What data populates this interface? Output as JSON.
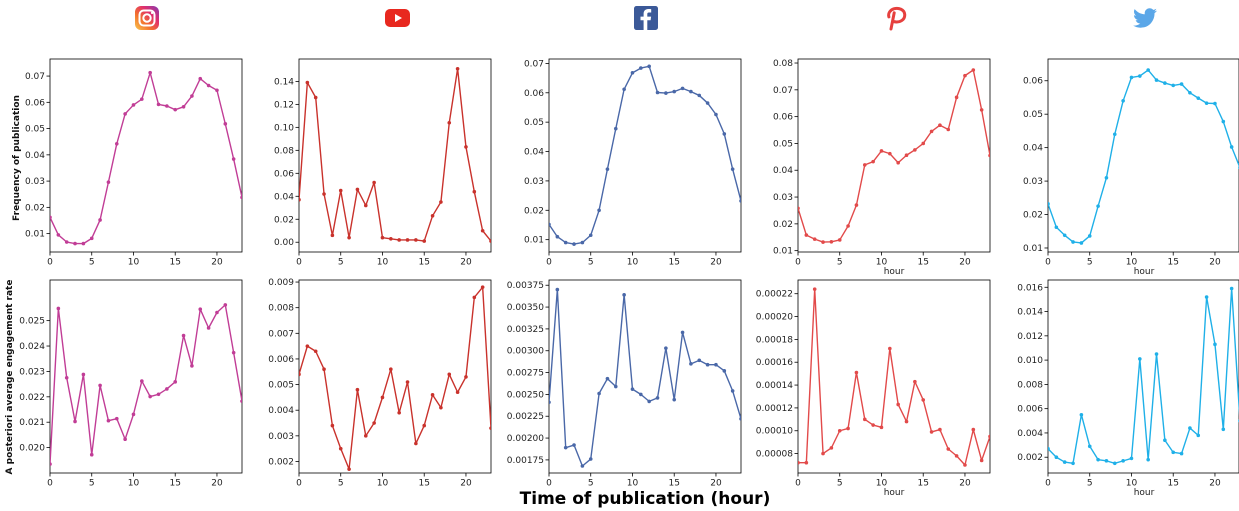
{
  "figure": {
    "xlabel": "Time of publication (hour)",
    "row_ylabels": [
      "Frequency of publication",
      "A posteriori average engagement rate"
    ]
  },
  "platforms": [
    {
      "name": "Instagram",
      "icon": "instagram-icon",
      "color": "#c13d96"
    },
    {
      "name": "YouTube",
      "icon": "youtube-icon",
      "color": "#e8281f"
    },
    {
      "name": "Facebook",
      "icon": "facebook-icon",
      "color": "#3b5998"
    },
    {
      "name": "Pinterest",
      "icon": "pinterest-icon",
      "color": "#e6403e"
    },
    {
      "name": "Twitter",
      "icon": "twitter-icon",
      "color": "#1da1f2"
    }
  ],
  "chart_data": [
    {
      "type": "line",
      "id": "instagram-frequency",
      "color": "#c13d96",
      "xlabel": "",
      "xlim": [
        0,
        23
      ],
      "ylim": [
        0.003,
        0.0765
      ],
      "xticks": [
        0,
        5,
        10,
        15,
        20
      ],
      "xtick_labels": [
        "0",
        "5",
        "10",
        "15",
        "20"
      ],
      "yticks": [
        0.01,
        0.02,
        0.03,
        0.04,
        0.05,
        0.06,
        0.07
      ],
      "ytick_labels": [
        "0.01",
        "0.02",
        "0.03",
        "0.04",
        "0.05",
        "0.06",
        "0.07"
      ],
      "x": [
        0,
        1,
        2,
        3,
        4,
        5,
        6,
        7,
        8,
        9,
        10,
        11,
        12,
        13,
        14,
        15,
        16,
        17,
        18,
        19,
        20,
        21,
        22,
        23
      ],
      "values": [
        0.0162,
        0.0095,
        0.0068,
        0.0062,
        0.0062,
        0.0082,
        0.0152,
        0.0296,
        0.0442,
        0.0556,
        0.059,
        0.0612,
        0.0713,
        0.0592,
        0.0586,
        0.0572,
        0.0583,
        0.0624,
        0.069,
        0.0664,
        0.0646,
        0.0518,
        0.0384,
        0.0238
      ]
    },
    {
      "type": "line",
      "id": "youtube-frequency",
      "color": "#c9322c",
      "xlabel": "",
      "xlim": [
        0,
        23
      ],
      "ylim": [
        -0.0085,
        0.1595
      ],
      "xticks": [
        0,
        5,
        10,
        15,
        20
      ],
      "xtick_labels": [
        "0",
        "5",
        "10",
        "15",
        "20"
      ],
      "yticks": [
        0.0,
        0.02,
        0.04,
        0.06,
        0.08,
        0.1,
        0.12,
        0.14
      ],
      "ytick_labels": [
        "0.00",
        "0.02",
        "0.04",
        "0.06",
        "0.08",
        "0.10",
        "0.12",
        "0.14"
      ],
      "x": [
        0,
        1,
        2,
        3,
        4,
        5,
        6,
        7,
        8,
        9,
        10,
        11,
        12,
        13,
        14,
        15,
        16,
        17,
        18,
        19,
        20,
        21,
        22,
        23
      ],
      "values": [
        0.037,
        0.139,
        0.126,
        0.042,
        0.006,
        0.045,
        0.004,
        0.046,
        0.032,
        0.052,
        0.004,
        0.003,
        0.002,
        0.002,
        0.002,
        0.001,
        0.023,
        0.035,
        0.104,
        0.151,
        0.083,
        0.044,
        0.01,
        0.001
      ]
    },
    {
      "type": "line",
      "id": "facebook-frequency",
      "color": "#4a68a8",
      "xlabel": "",
      "xlim": [
        0,
        23
      ],
      "ylim": [
        0.0058,
        0.0715
      ],
      "xticks": [
        0,
        5,
        10,
        15,
        20
      ],
      "xtick_labels": [
        "0",
        "5",
        "10",
        "15",
        "20"
      ],
      "yticks": [
        0.01,
        0.02,
        0.03,
        0.04,
        0.05,
        0.06,
        0.07
      ],
      "ytick_labels": [
        "0.01",
        "0.02",
        "0.03",
        "0.04",
        "0.05",
        "0.06",
        "0.07"
      ],
      "x": [
        0,
        1,
        2,
        3,
        4,
        5,
        6,
        7,
        8,
        9,
        10,
        11,
        12,
        13,
        14,
        15,
        16,
        17,
        18,
        19,
        20,
        21,
        22,
        23
      ],
      "values": [
        0.0152,
        0.011,
        0.009,
        0.0085,
        0.009,
        0.0115,
        0.02,
        0.034,
        0.0478,
        0.0612,
        0.0668,
        0.0684,
        0.069,
        0.0601,
        0.0599,
        0.0604,
        0.0615,
        0.0604,
        0.0591,
        0.0565,
        0.0526,
        0.046,
        0.034,
        0.0232
      ]
    },
    {
      "type": "line",
      "id": "pinterest-frequency",
      "color": "#e24a4a",
      "xlabel": "hour",
      "xlim": [
        0,
        23
      ],
      "ylim": [
        0.0095,
        0.0815
      ],
      "xticks": [
        0,
        5,
        10,
        15,
        20
      ],
      "xtick_labels": [
        "0",
        "5",
        "10",
        "15",
        "20"
      ],
      "yticks": [
        0.01,
        0.02,
        0.03,
        0.04,
        0.05,
        0.06,
        0.07,
        0.08
      ],
      "ytick_labels": [
        "0.01",
        "0.02",
        "0.03",
        "0.04",
        "0.05",
        "0.06",
        "0.07",
        "0.08"
      ],
      "x": [
        0,
        1,
        2,
        3,
        4,
        5,
        6,
        7,
        8,
        9,
        10,
        11,
        12,
        13,
        14,
        15,
        16,
        17,
        18,
        19,
        20,
        21,
        22,
        23
      ],
      "values": [
        0.0258,
        0.0158,
        0.0143,
        0.0132,
        0.0133,
        0.014,
        0.0192,
        0.027,
        0.042,
        0.0432,
        0.0472,
        0.0462,
        0.0428,
        0.0456,
        0.0476,
        0.05,
        0.0545,
        0.0568,
        0.0552,
        0.0672,
        0.0753,
        0.0774,
        0.0625,
        0.0455
      ]
    },
    {
      "type": "line",
      "id": "twitter-frequency",
      "color": "#1fb0e8",
      "xlabel": "hour",
      "xlim": [
        0,
        23
      ],
      "ylim": [
        0.0088,
        0.0665
      ],
      "xticks": [
        0,
        5,
        10,
        15,
        20
      ],
      "xtick_labels": [
        "0",
        "5",
        "10",
        "15",
        "20"
      ],
      "yticks": [
        0.01,
        0.02,
        0.03,
        0.04,
        0.05,
        0.06
      ],
      "ytick_labels": [
        "0.01",
        "0.02",
        "0.03",
        "0.04",
        "0.05",
        "0.06"
      ],
      "x": [
        0,
        1,
        2,
        3,
        4,
        5,
        6,
        7,
        8,
        9,
        10,
        11,
        12,
        13,
        14,
        15,
        16,
        17,
        18,
        19,
        20,
        21,
        22,
        23
      ],
      "values": [
        0.0232,
        0.0162,
        0.0138,
        0.0118,
        0.0115,
        0.0136,
        0.0225,
        0.031,
        0.044,
        0.054,
        0.061,
        0.0614,
        0.0632,
        0.0602,
        0.0593,
        0.0586,
        0.059,
        0.0564,
        0.0548,
        0.0533,
        0.0532,
        0.0478,
        0.0402,
        0.034
      ]
    },
    {
      "type": "line",
      "id": "instagram-engagement",
      "color": "#c13d96",
      "xlabel": "",
      "xlim": [
        0,
        23
      ],
      "ylim": [
        0.019,
        0.0266
      ],
      "xticks": [
        0,
        5,
        10,
        15,
        20
      ],
      "xtick_labels": [
        "0",
        "5",
        "10",
        "15",
        "20"
      ],
      "yticks": [
        0.02,
        0.021,
        0.022,
        0.023,
        0.024,
        0.025
      ],
      "ytick_labels": [
        "0.020",
        "0.021",
        "0.022",
        "0.023",
        "0.024",
        "0.025"
      ],
      "x": [
        0,
        1,
        2,
        3,
        4,
        5,
        6,
        7,
        8,
        9,
        10,
        11,
        12,
        13,
        14,
        15,
        16,
        17,
        18,
        19,
        20,
        21,
        22,
        23
      ],
      "values": [
        0.01935,
        0.02548,
        0.02275,
        0.02103,
        0.02288,
        0.01972,
        0.02245,
        0.02106,
        0.02114,
        0.02033,
        0.02131,
        0.02262,
        0.02201,
        0.0221,
        0.02231,
        0.02259,
        0.02441,
        0.02322,
        0.02545,
        0.02471,
        0.02532,
        0.02562,
        0.02374,
        0.02183
      ]
    },
    {
      "type": "line",
      "id": "youtube-engagement",
      "color": "#c9322c",
      "xlabel": "",
      "xlim": [
        0,
        23
      ],
      "ylim": [
        0.00155,
        0.00908
      ],
      "xticks": [
        0,
        5,
        10,
        15,
        20
      ],
      "xtick_labels": [
        "0",
        "5",
        "10",
        "15",
        "20"
      ],
      "yticks": [
        0.002,
        0.003,
        0.004,
        0.005,
        0.006,
        0.007,
        0.008,
        0.009
      ],
      "ytick_labels": [
        "0.002",
        "0.003",
        "0.004",
        "0.005",
        "0.006",
        "0.007",
        "0.008",
        "0.009"
      ],
      "x": [
        0,
        1,
        2,
        3,
        4,
        5,
        6,
        7,
        8,
        9,
        10,
        11,
        12,
        13,
        14,
        15,
        16,
        17,
        18,
        19,
        20,
        21,
        22,
        23
      ],
      "values": [
        0.0054,
        0.0065,
        0.0063,
        0.0056,
        0.0034,
        0.0025,
        0.0017,
        0.0048,
        0.003,
        0.0035,
        0.0045,
        0.0056,
        0.0039,
        0.0051,
        0.0027,
        0.0034,
        0.0046,
        0.0041,
        0.0054,
        0.0047,
        0.0053,
        0.0084,
        0.0088,
        0.0033
      ]
    },
    {
      "type": "line",
      "id": "facebook-engagement",
      "color": "#4a68a8",
      "xlabel": "",
      "xlim": [
        0,
        23
      ],
      "ylim": [
        0.0016,
        0.00381
      ],
      "xticks": [
        0,
        5,
        10,
        15,
        20
      ],
      "xtick_labels": [
        "0",
        "5",
        "10",
        "15",
        "20"
      ],
      "yticks": [
        0.00175,
        0.002,
        0.00225,
        0.0025,
        0.00275,
        0.003,
        0.00325,
        0.0035,
        0.00375
      ],
      "ytick_labels": [
        "0.00175",
        "0.00200",
        "0.00225",
        "0.00250",
        "0.00275",
        "0.00300",
        "0.00325",
        "0.00350",
        "0.00375"
      ],
      "x": [
        0,
        1,
        2,
        3,
        4,
        5,
        6,
        7,
        8,
        9,
        10,
        11,
        12,
        13,
        14,
        15,
        16,
        17,
        18,
        19,
        20,
        21,
        22,
        23
      ],
      "values": [
        0.00241,
        0.0037,
        0.00189,
        0.00192,
        0.00168,
        0.00176,
        0.00251,
        0.00268,
        0.00259,
        0.00364,
        0.00256,
        0.0025,
        0.00242,
        0.00246,
        0.00303,
        0.00244,
        0.00321,
        0.00285,
        0.00289,
        0.00284,
        0.00284,
        0.00277,
        0.00254,
        0.00222
      ]
    },
    {
      "type": "line",
      "id": "pinterest-engagement",
      "color": "#e24a4a",
      "xlabel": "hour",
      "xlim": [
        0,
        23
      ],
      "ylim": [
        6.3e-05,
        0.000232
      ],
      "xticks": [
        0,
        5,
        10,
        15,
        20
      ],
      "xtick_labels": [
        "0",
        "5",
        "10",
        "15",
        "20"
      ],
      "yticks": [
        8e-05,
        0.0001,
        0.00012,
        0.00014,
        0.00016,
        0.00018,
        0.0002,
        0.00022
      ],
      "ytick_labels": [
        "0.00008",
        "0.00010",
        "0.00012",
        "0.00014",
        "0.00016",
        "0.00018",
        "0.00020",
        "0.00022"
      ],
      "x": [
        0,
        1,
        2,
        3,
        4,
        5,
        6,
        7,
        8,
        9,
        10,
        11,
        12,
        13,
        14,
        15,
        16,
        17,
        18,
        19,
        20,
        21,
        22,
        23
      ],
      "values": [
        7.2e-05,
        7.2e-05,
        0.000224,
        8e-05,
        8.5e-05,
        0.0001,
        0.000102,
        0.000151,
        0.00011,
        0.000105,
        0.000103,
        0.000172,
        0.000123,
        0.000108,
        0.000143,
        0.000127,
        9.9e-05,
        0.000101,
        8.4e-05,
        7.8e-05,
        7e-05,
        0.000101,
        7.4e-05,
        9.5e-05
      ]
    },
    {
      "type": "line",
      "id": "twitter-engagement",
      "color": "#1fb0e8",
      "xlabel": "hour",
      "xlim": [
        0,
        23
      ],
      "ylim": [
        0.0007,
        0.0166
      ],
      "xticks": [
        0,
        5,
        10,
        15,
        20
      ],
      "xtick_labels": [
        "0",
        "5",
        "10",
        "15",
        "20"
      ],
      "yticks": [
        0.002,
        0.004,
        0.006,
        0.008,
        0.01,
        0.012,
        0.014,
        0.016
      ],
      "ytick_labels": [
        "0.002",
        "0.004",
        "0.006",
        "0.008",
        "0.010",
        "0.012",
        "0.014",
        "0.016"
      ],
      "x": [
        0,
        1,
        2,
        3,
        4,
        5,
        6,
        7,
        8,
        9,
        10,
        11,
        12,
        13,
        14,
        15,
        16,
        17,
        18,
        19,
        20,
        21,
        22,
        23
      ],
      "values": [
        0.0027,
        0.002,
        0.0016,
        0.0015,
        0.0055,
        0.0029,
        0.0018,
        0.0017,
        0.0015,
        0.0017,
        0.0019,
        0.0101,
        0.0018,
        0.0105,
        0.0034,
        0.0024,
        0.0023,
        0.0044,
        0.0038,
        0.0152,
        0.0113,
        0.0043,
        0.0159,
        0.005
      ]
    }
  ]
}
